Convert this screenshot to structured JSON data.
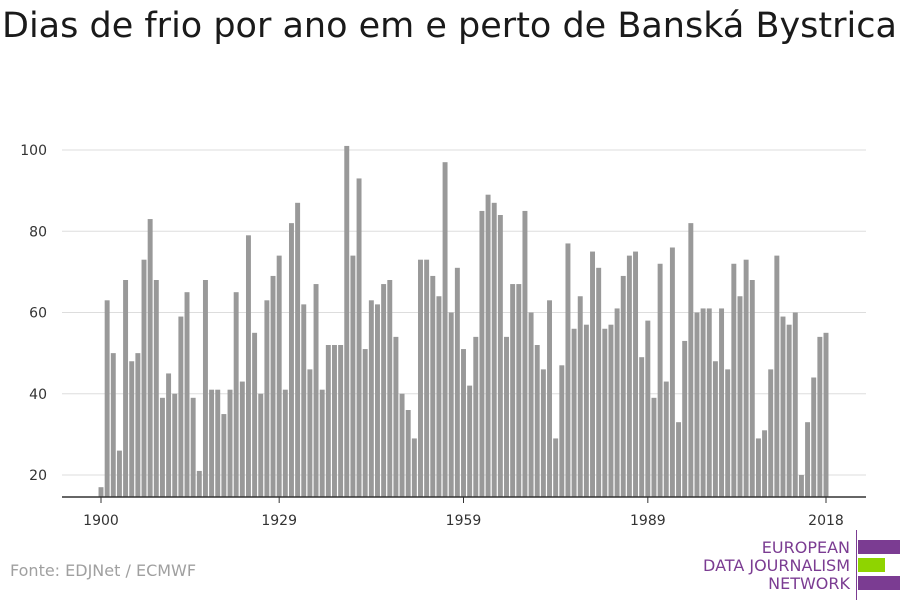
{
  "title": "Dias de frio por ano em e perto de Banská Bystrica",
  "source": "Fonte: EDJNet / ECMWF",
  "logo": {
    "lines": [
      "EUROPEAN",
      "DATA JOURNALISM",
      "NETWORK"
    ],
    "text_color": "#7b3c92",
    "bar_colors": [
      "#7b3c92",
      "#8fd400",
      "#7b3c92"
    ]
  },
  "colors": {
    "bar": "#999999",
    "grid": "#dddddd",
    "axis": "#333333",
    "tick_text": "#333333"
  },
  "chart_data": {
    "type": "bar",
    "title": "Dias de frio por ano em e perto de Banská Bystrica",
    "xlabel": "",
    "ylabel": "",
    "ylim": [
      15,
      102
    ],
    "yticks": [
      20,
      40,
      60,
      80,
      100
    ],
    "xticks": [
      1900,
      1929,
      1959,
      1989,
      2018
    ],
    "grid": true,
    "x": [
      1900,
      1901,
      1902,
      1903,
      1904,
      1905,
      1906,
      1907,
      1908,
      1909,
      1910,
      1911,
      1912,
      1913,
      1914,
      1915,
      1916,
      1917,
      1918,
      1919,
      1920,
      1921,
      1922,
      1923,
      1924,
      1925,
      1926,
      1927,
      1928,
      1929,
      1930,
      1931,
      1932,
      1933,
      1934,
      1935,
      1936,
      1937,
      1938,
      1939,
      1940,
      1941,
      1942,
      1943,
      1944,
      1945,
      1946,
      1947,
      1948,
      1949,
      1950,
      1951,
      1952,
      1953,
      1954,
      1955,
      1956,
      1957,
      1958,
      1959,
      1960,
      1961,
      1962,
      1963,
      1964,
      1965,
      1966,
      1967,
      1968,
      1969,
      1970,
      1971,
      1972,
      1973,
      1974,
      1975,
      1976,
      1977,
      1978,
      1979,
      1980,
      1981,
      1982,
      1983,
      1984,
      1985,
      1986,
      1987,
      1988,
      1989,
      1990,
      1991,
      1992,
      1993,
      1994,
      1995,
      1996,
      1997,
      1998,
      1999,
      2000,
      2001,
      2002,
      2003,
      2004,
      2005,
      2006,
      2007,
      2008,
      2009,
      2010,
      2011,
      2012,
      2013,
      2014,
      2015,
      2016,
      2017,
      2018
    ],
    "values": [
      17,
      63,
      50,
      26,
      68,
      48,
      50,
      73,
      83,
      68,
      39,
      45,
      40,
      59,
      65,
      39,
      21,
      68,
      41,
      41,
      35,
      41,
      65,
      43,
      79,
      55,
      40,
      63,
      69,
      74,
      41,
      82,
      87,
      62,
      46,
      67,
      41,
      52,
      52,
      52,
      101,
      74,
      93,
      51,
      63,
      62,
      67,
      68,
      54,
      40,
      36,
      29,
      73,
      73,
      69,
      64,
      97,
      60,
      71,
      51,
      42,
      54,
      85,
      89,
      87,
      84,
      54,
      67,
      67,
      85,
      60,
      52,
      46,
      63,
      29,
      47,
      77,
      56,
      64,
      57,
      75,
      71,
      56,
      57,
      61,
      69,
      74,
      75,
      49,
      58,
      39,
      72,
      43,
      76,
      33,
      53,
      82,
      60,
      61,
      61,
      48,
      61,
      46,
      72,
      64,
      73,
      68,
      29,
      31,
      46,
      74,
      59,
      57,
      60,
      20,
      33,
      44,
      54,
      55
    ]
  }
}
